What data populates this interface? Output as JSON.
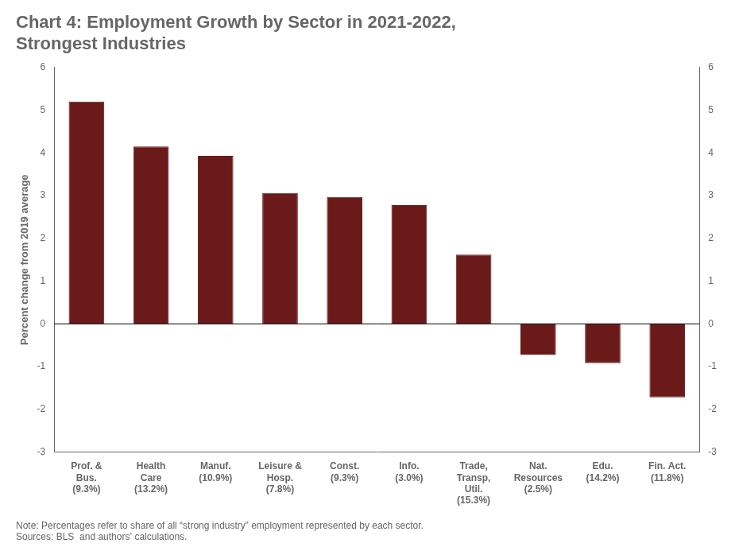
{
  "chart_data": {
    "type": "bar",
    "title": "Chart 4: Employment Growth by Sector in 2021-2022,\nStrongest Industries",
    "y_label": "Percent change from 2019 average",
    "categories": [
      "Prof. &\nBus.\n(9.3%)",
      "Health\nCare\n(13.2%)",
      "Manuf.\n(10.9%)",
      "Leisure &\nHosp.\n(7.8%)",
      "Const.\n(9.3%)",
      "Info.\n(3.0%)",
      "Trade,\nTransp,\nUtil.\n(15.3%)",
      "Nat.\nResources\n(2.5%)",
      "Edu.\n(14.2%)",
      "Fin. Act.\n(11.8%)"
    ],
    "values": [
      5.2,
      4.15,
      3.93,
      3.06,
      2.97,
      2.78,
      1.62,
      -0.72,
      -0.92,
      -1.72
    ],
    "color": "#6B1A1A",
    "ylim": [
      -3,
      6
    ],
    "yticks": [
      -3,
      -2,
      -1,
      0,
      1,
      2,
      3,
      4,
      5,
      6
    ],
    "y2lim": [
      -3,
      6
    ],
    "y2ticks": [
      -3,
      -2,
      -1,
      0,
      1,
      2,
      3,
      4,
      5,
      6
    ],
    "grid": false,
    "annotations": [
      "Note: Percentages refer to share of all “strong industry” employment represented by each sector.\nSources: BLS  and authors’ calculations."
    ]
  }
}
